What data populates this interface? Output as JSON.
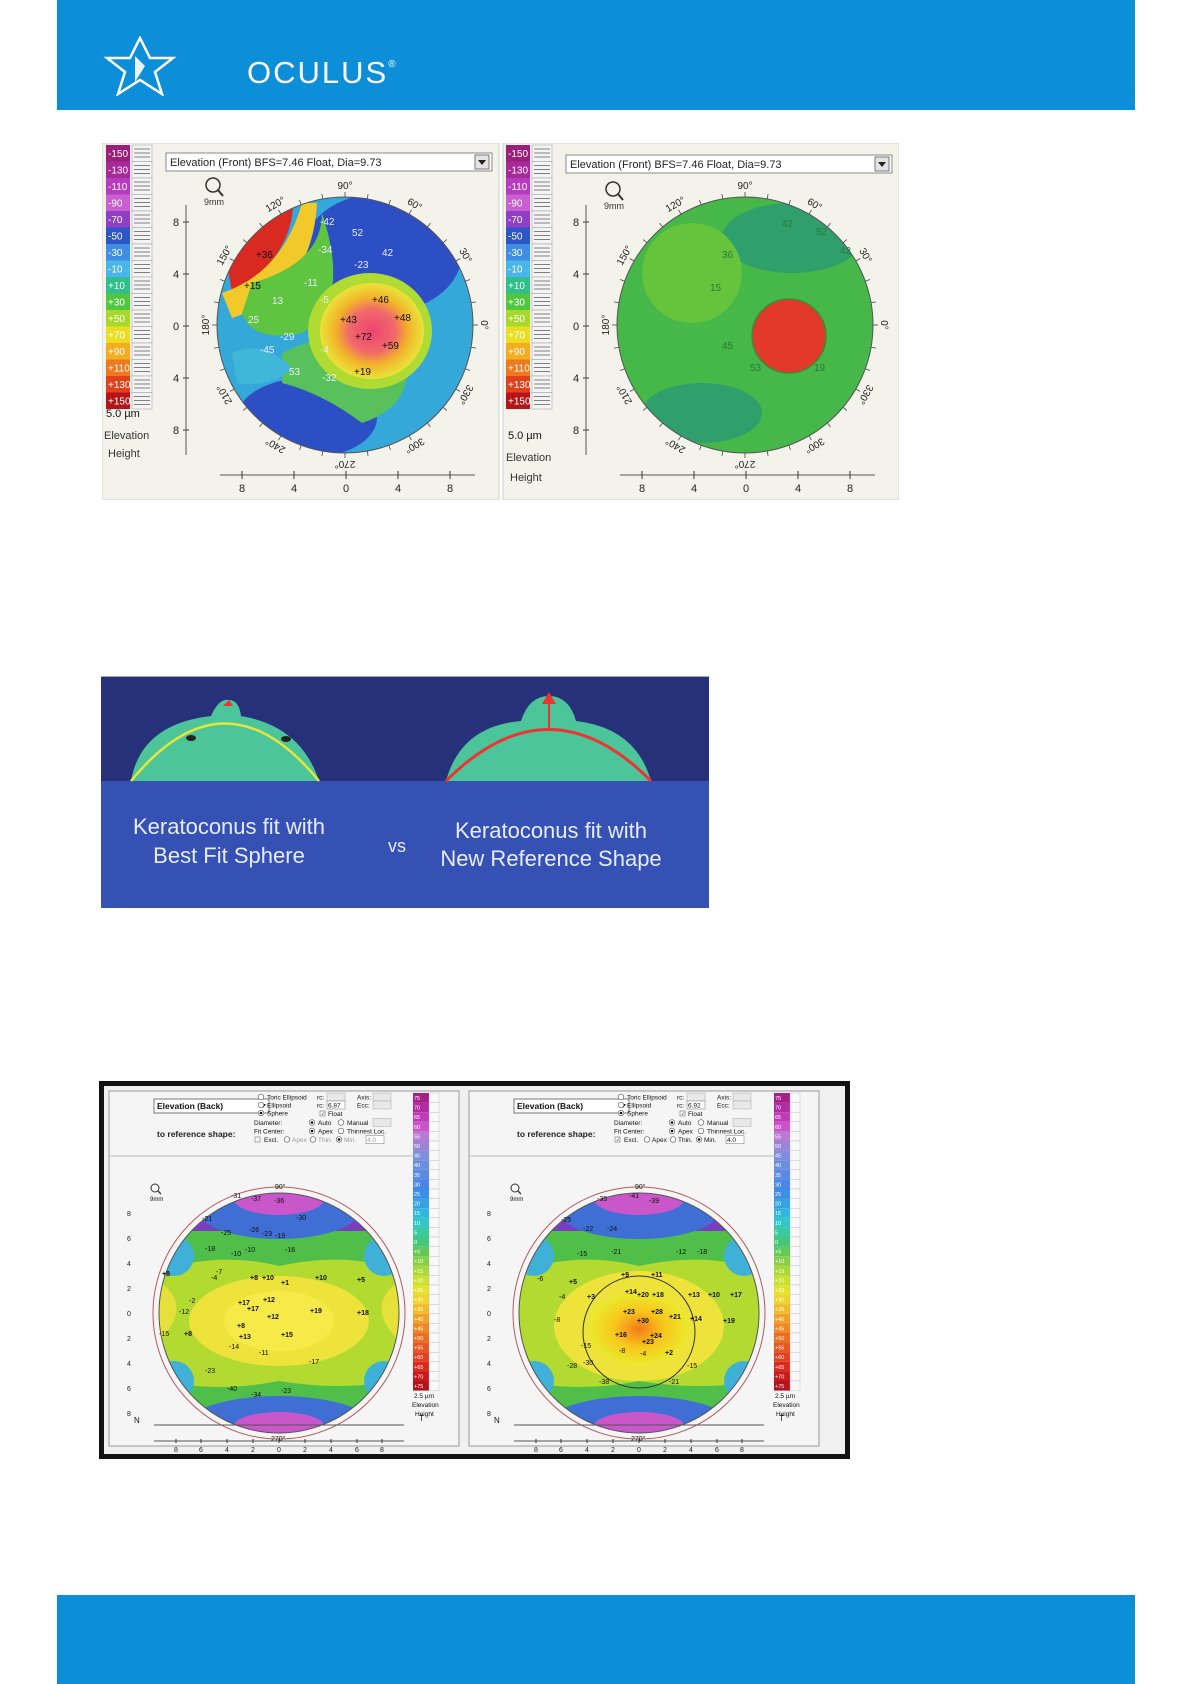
{
  "brand": {
    "name": "OCULUS",
    "mark": "®"
  },
  "figure1": {
    "dropdown": "Elevation (Front)  BFS=7.46 Float, Dia=9.73",
    "scale_left": [
      "-150",
      "-130",
      "-110",
      "-90",
      "-70",
      "-50",
      "-30",
      "-10",
      "+10",
      "+30",
      "+50",
      "+70",
      "+90",
      "+110",
      "+130",
      "+150"
    ],
    "scale_colors": [
      "#9b1f78",
      "#a8299a",
      "#b63bbf",
      "#c95fd0",
      "#8e3fc5",
      "#2d56c5",
      "#3f8ee6",
      "#48b6e8",
      "#2fbf8a",
      "#53c640",
      "#a8d82a",
      "#e8df22",
      "#f3ad20",
      "#ee7a1d",
      "#e0401e",
      "#b9131a"
    ],
    "unit": "5.0 µm",
    "unit_label_1": "Elevation",
    "unit_label_2": "Height",
    "magnifier_label": "9mm",
    "angles": [
      "90°",
      "60°",
      "30°",
      "0°",
      "330°",
      "300°",
      "270°",
      "240°",
      "210°",
      "180°",
      "150°",
      "120°"
    ],
    "axis_y": [
      "8",
      "4",
      "0",
      "4",
      "8"
    ],
    "axis_x": [
      "8",
      "4",
      "0",
      "4",
      "8"
    ],
    "left_map_values": [
      "-42",
      "52",
      "-34",
      "42",
      "-23",
      "+36",
      "-11",
      "-5",
      "+46",
      "+15",
      "13",
      "+43",
      "+48",
      "25",
      "+72",
      "-29",
      "+59",
      "-45",
      "-4",
      "53",
      "-32",
      "+19"
    ],
    "right_map_values": [
      "42",
      "52",
      "42",
      "36",
      "15",
      "45",
      "53",
      "19"
    ]
  },
  "figure2": {
    "left_caption_1": "Keratoconus fit with",
    "left_caption_2": "Best Fit Sphere",
    "vs": "vs",
    "right_caption_1": "Keratoconus fit with",
    "right_caption_2": "New Reference Shape"
  },
  "figure3": {
    "dropdown": "Elevation (Back)",
    "ref_label": "to reference shape:",
    "options": [
      "Toric Ellipsoid",
      "Ellipsoid",
      "Sphere"
    ],
    "field_rc": "rc:",
    "field_axis": "Axis:",
    "field_ecc": "Ecc:",
    "float": "Float",
    "diameter": "Diameter:",
    "diameter_opts": [
      "Auto",
      "Manual"
    ],
    "fit_center": "Fit Center:",
    "fit_opts": [
      "Apex",
      "Thinnest Loc."
    ],
    "excl": "Excl.",
    "excl_opts": [
      "Apex",
      "Thin.",
      "Min."
    ],
    "left_rc_value": "6.87",
    "right_rc_value": "6.92",
    "right_min_value": "4.0",
    "left_min_value": "4.0",
    "scale_right": [
      "75",
      "70",
      "65",
      "60",
      "55",
      "50",
      "45",
      "40",
      "35",
      "30",
      "25",
      "20",
      "15",
      "10",
      "5",
      "0",
      "+5",
      "+10",
      "+15",
      "+20",
      "+25",
      "+30",
      "+35",
      "+40",
      "+45",
      "+50",
      "+55",
      "+60",
      "+65",
      "+70",
      "+75"
    ],
    "unit": "2.5 µm",
    "unit_label_1": "Elevation",
    "unit_label_2": "Height",
    "axis_y": [
      "8",
      "6",
      "4",
      "2",
      "0",
      "2",
      "4",
      "6",
      "8"
    ],
    "axis_x": [
      "8",
      "6",
      "4",
      "2",
      "0",
      "2",
      "4",
      "6",
      "8"
    ],
    "n_label": "N",
    "t_label": "T",
    "top_angle": "90°",
    "bottom_angle": "270°",
    "magnifier_label": "9mm",
    "left_values": [
      "-37",
      "-31",
      "-36",
      "-21",
      "-30",
      "-26",
      "-25",
      "-23",
      "-19",
      "-18",
      "-10",
      "-16",
      "-10",
      "-7",
      "+8",
      "-4",
      "+8",
      "+10",
      "+1",
      "+10",
      "+5",
      "+17",
      "+12",
      "+17",
      "-2",
      "-12",
      "+19",
      "+12",
      "+8",
      "+18",
      "-15",
      "+8",
      "+13",
      "+15",
      "-14",
      "-11",
      "-23",
      "-17",
      "-40",
      "-34",
      "-23"
    ],
    "right_values": [
      "-35",
      "-41",
      "-39",
      "-25",
      "-22",
      "-24",
      "-21",
      "-12",
      "-15",
      "-18",
      "+9",
      "+11",
      "+5",
      "-6",
      "+14",
      "+20",
      "+18",
      "+13",
      "+10",
      "+17",
      "-4",
      "+3",
      "+23",
      "+28",
      "+21",
      "+30",
      "+14",
      "+19",
      "+16",
      "+24",
      "-8",
      "+23",
      "-15",
      "-8",
      "-4",
      "+2",
      "-28",
      "-15",
      "-38",
      "-21",
      "-30"
    ]
  }
}
